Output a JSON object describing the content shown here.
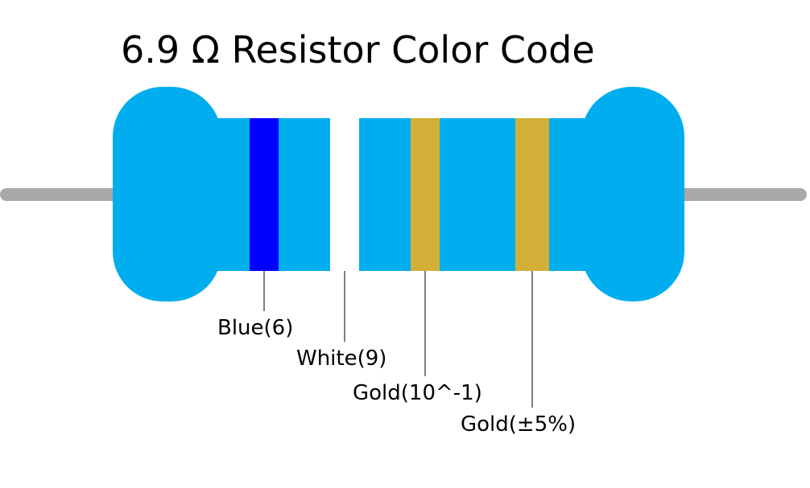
{
  "title": "6.9 Ω Resistor Color Code",
  "bands": [
    {
      "label": "Blue(6)",
      "color": "#0000ff"
    },
    {
      "label": "White(9)",
      "color": "#ffffff"
    },
    {
      "label": "Gold(10^-1)",
      "color": "#d4af37"
    },
    {
      "label": "Gold(±5%)",
      "color": "#d4af37"
    }
  ]
}
